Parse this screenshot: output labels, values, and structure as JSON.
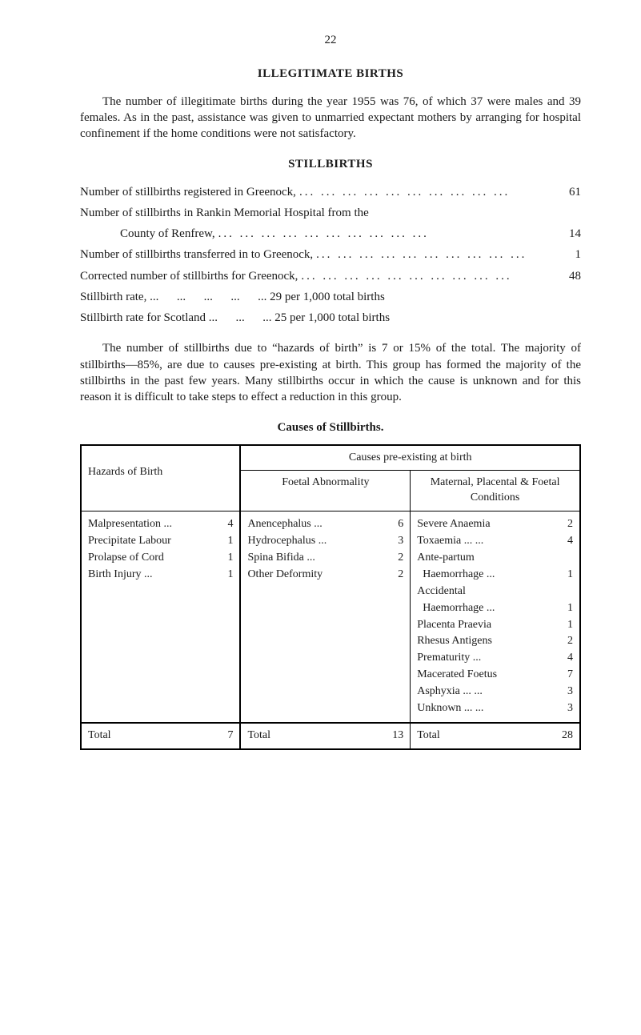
{
  "page_number": "22",
  "sections": {
    "illegit": {
      "title": "ILLEGITIMATE BIRTHS",
      "para": "The number of illegitimate births during the year 1955 was 76, of which 37 were males and 39 females. As in the past, assistance was given to unmarried expectant mothers by arranging for hospital confinement if the home conditions were not satisfactory."
    },
    "stillbirths": {
      "title": "STILLBIRTHS",
      "stats": {
        "s1_label": "Number of stillbirths registered in Greenock,",
        "s1_val": "61",
        "s2a_label": "Number of stillbirths in Rankin Memorial Hospital from the",
        "s2b_label": "County of Renfrew,",
        "s2_val": "14",
        "s3_label": "Number of stillbirths transferred in to Greenock,",
        "s3_val": "1",
        "s4_label": "Corrected number of stillbirths for Greenock,",
        "s4_val": "48",
        "s5_full": "Stillbirth rate, ...      ...      ...      ...      ... 29 per 1,000 total births",
        "s6_full": "Stillbirth rate for Scotland ...      ...      ... 25 per 1,000 total births"
      },
      "para": "The number of stillbirths due to “hazards of birth” is 7 or 15% of the total. The majority of stillbirths—85%, are due to causes pre-existing at birth. This group has formed the majority of the stillbirths in the past few years. Many stillbirths occur in which the cause is unknown and for this reason it is difficult to take steps to effect a reduction in this group."
    }
  },
  "table": {
    "title": "Causes of Stillbirths.",
    "headers": {
      "hazards": "Hazards of Birth",
      "causes_top": "Causes pre-existing at birth",
      "foetal_abn": "Foetal Abnormality",
      "maternal": "Maternal, Placental & Foetal Conditions"
    },
    "hazards_rows": [
      {
        "label": "Malpresentation ...",
        "val": "4"
      },
      {
        "label": "Precipitate Labour",
        "val": "1"
      },
      {
        "label": "Prolapse of Cord",
        "val": "1"
      },
      {
        "label": "Birth Injury    ...",
        "val": "1"
      }
    ],
    "foetal_rows": [
      {
        "label": "Anencephalus    ...",
        "val": "6"
      },
      {
        "label": "Hydrocephalus  ...",
        "val": "3"
      },
      {
        "label": "Spina Bifida      ...",
        "val": "2"
      },
      {
        "label": "Other Deformity",
        "val": "2"
      }
    ],
    "maternal_rows": [
      {
        "label": "Severe Anaemia",
        "val": "2"
      },
      {
        "label": "Toxaemia ...      ...",
        "val": "4"
      },
      {
        "label": "Ante-partum",
        "val": ""
      },
      {
        "label": "  Haemorrhage  ...",
        "val": "1"
      },
      {
        "label": "Accidental",
        "val": ""
      },
      {
        "label": "  Haemorrhage  ...",
        "val": "1"
      },
      {
        "label": "Placenta Praevia",
        "val": "1"
      },
      {
        "label": "Rhesus Antigens",
        "val": "2"
      },
      {
        "label": "Prematurity      ...",
        "val": "4"
      },
      {
        "label": "Macerated Foetus",
        "val": "7"
      },
      {
        "label": "Asphyxia ...      ...",
        "val": "3"
      },
      {
        "label": "Unknown ...      ...",
        "val": "3"
      }
    ],
    "totals": {
      "label": "Total",
      "hazards": "7",
      "foetal": "13",
      "maternal": "28"
    }
  },
  "dots": "... ... ... ... ... ... ... ... ... ..."
}
